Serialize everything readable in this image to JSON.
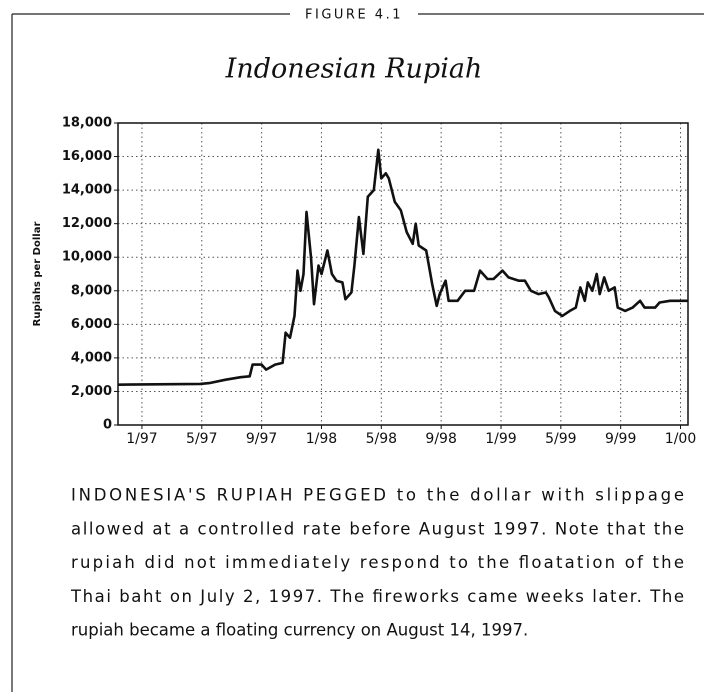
{
  "chart_data": {
    "type": "line",
    "figure_label": "FIGURE 4.1",
    "title": "Indonesian Rupiah",
    "y_label": "Rupiahs per Dollar",
    "x": [
      -1.6,
      3.9,
      4.5,
      5.6,
      6.6,
      7.2,
      7.4,
      8.0,
      8.3,
      8.9,
      9.4,
      9.6,
      9.9,
      10.2,
      10.4,
      10.6,
      10.8,
      11.0,
      11.3,
      11.5,
      11.8,
      12.0,
      12.4,
      12.7,
      13.0,
      13.4,
      13.6,
      14.0,
      14.2,
      14.5,
      14.8,
      15.1,
      15.5,
      15.8,
      16.0,
      16.3,
      16.5,
      16.9,
      17.3,
      17.7,
      18.1,
      18.3,
      18.5,
      19.0,
      19.4,
      19.7,
      19.9,
      20.3,
      20.5,
      21.1,
      21.6,
      22.2,
      22.6,
      23.1,
      23.5,
      24.1,
      24.5,
      25.2,
      25.6,
      26.0,
      26.5,
      27.0,
      27.2,
      27.6,
      28.1,
      28.6,
      29.0,
      29.3,
      29.6,
      29.8,
      30.1,
      30.4,
      30.6,
      30.9,
      31.2,
      31.6,
      31.8,
      32.3,
      32.8,
      33.3,
      33.6,
      34.3,
      34.6,
      35.3,
      36.5
    ],
    "series": [
      {
        "color": "#111111",
        "values": [
          2400,
          2450,
          2500,
          2700,
          2850,
          2900,
          3600,
          3600,
          3300,
          3600,
          3700,
          5500,
          5200,
          6500,
          9200,
          8000,
          9000,
          12700,
          10000,
          7200,
          9500,
          9000,
          10400,
          9000,
          8600,
          8500,
          7500,
          7900,
          9500,
          12400,
          10200,
          13600,
          14000,
          16400,
          14700,
          15000,
          14700,
          13300,
          12800,
          11500,
          10800,
          12000,
          10700,
          10400,
          8400,
          7100,
          7800,
          8600,
          7400,
          7400,
          8000,
          8000,
          9200,
          8700,
          8700,
          9200,
          8800,
          8600,
          8600,
          8000,
          7800,
          7900,
          7600,
          6800,
          6500,
          6800,
          7000,
          8200,
          7400,
          8500,
          8000,
          9000,
          7800,
          8800,
          8000,
          8200,
          7000,
          6800,
          7000,
          7400,
          7000,
          7000,
          7300,
          7400,
          7400
        ]
      }
    ],
    "xlim": [
      -1.6,
      36.5
    ],
    "xticks": [
      {
        "value": 0,
        "label": "1/97"
      },
      {
        "value": 4,
        "label": "5/97"
      },
      {
        "value": 8,
        "label": "9/97"
      },
      {
        "value": 12,
        "label": "1/98"
      },
      {
        "value": 16,
        "label": "5/98"
      },
      {
        "value": 20,
        "label": "9/98"
      },
      {
        "value": 24,
        "label": "1/99"
      },
      {
        "value": 28,
        "label": "5/99"
      },
      {
        "value": 32,
        "label": "9/99"
      },
      {
        "value": 36,
        "label": "1/00"
      }
    ],
    "ylim": [
      0,
      18000
    ],
    "yticks": [
      0,
      {
        "value": 2000,
        "label": "2,000"
      },
      {
        "value": 4000,
        "label": "4,000"
      },
      {
        "value": 6000,
        "label": "6,000"
      },
      {
        "value": 8000,
        "label": "8,000"
      },
      {
        "value": 10000,
        "label": "10,000"
      },
      {
        "value": 12000,
        "label": "12,000"
      },
      {
        "value": 14000,
        "label": "14,000"
      },
      {
        "value": 16000,
        "label": "16,000"
      },
      {
        "value": 18000,
        "label": "18,000"
      }
    ],
    "grid": true,
    "caption": [
      "INDONESIA'S RUPIAH PEGGED to the dollar with slippage",
      "allowed at a controlled rate before August 1997. Note that the",
      "rupiah did not immediately respond to the floatation of the",
      "Thai baht on July 2, 1997. The fireworks came weeks later. The",
      "rupiah became a floating currency on August 14, 1997."
    ]
  }
}
